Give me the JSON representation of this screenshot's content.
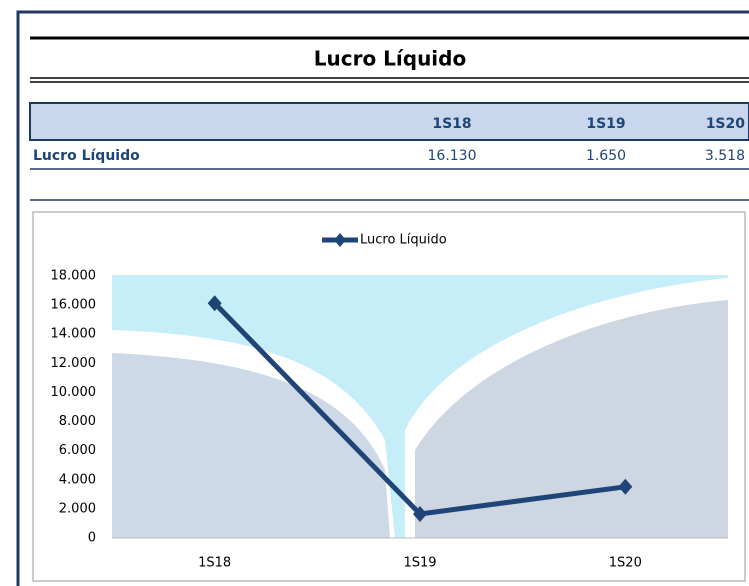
{
  "header": {
    "title": "Lucro Líquido"
  },
  "table": {
    "columns": [
      "1S18",
      "1S19",
      "1S20"
    ],
    "rows": [
      [
        "Lucro Líquido",
        "16.130",
        "1.650",
        "3.518"
      ]
    ]
  },
  "chart_data": {
    "type": "line",
    "categories": [
      "1S18",
      "1S19",
      "1S20"
    ],
    "series": [
      {
        "name": "Lucro Líquido",
        "color": "#1f4578",
        "values": [
          16130,
          1650,
          3518
        ]
      }
    ],
    "ylim": [
      0,
      18000
    ],
    "yticks": [
      0,
      {
        "value": 2000,
        "label": "2.000"
      },
      {
        "value": 4000,
        "label": "4.000"
      },
      {
        "value": 6000,
        "label": "6.000"
      },
      {
        "value": 8000,
        "label": "8.000"
      },
      {
        "value": 10000,
        "label": "10.000"
      },
      {
        "value": 12000,
        "label": "12.000"
      },
      {
        "value": 14000,
        "label": "14.000"
      },
      {
        "value": 16000,
        "label": "16.000"
      },
      {
        "value": 18000,
        "label": "18.000"
      }
    ],
    "legend": "top",
    "grid": false
  }
}
